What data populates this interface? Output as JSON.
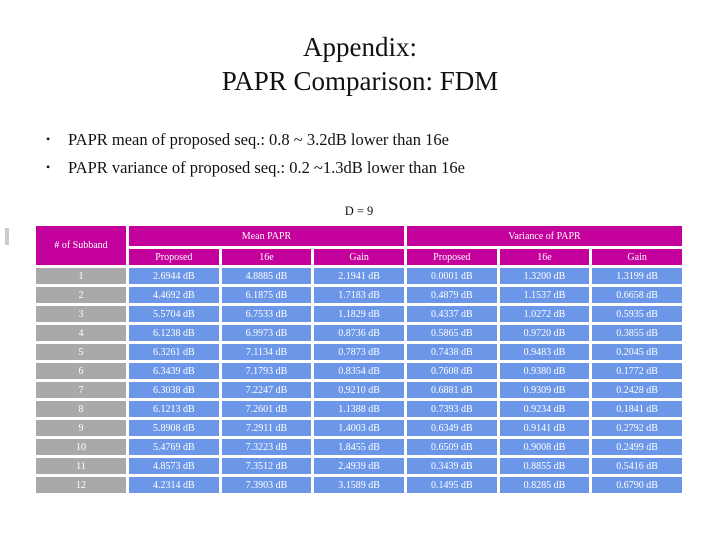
{
  "slide": {
    "title_line1": "Appendix:",
    "title_line2": "PAPR Comparison: FDM",
    "bullet_marker": "•",
    "bullets": [
      "PAPR mean of proposed seq.: 0.8 ~ 3.2dB lower than 16e",
      "PAPR variance of proposed seq.: 0.2 ~1.3dB lower than 16e"
    ]
  },
  "table": {
    "caption": "D = 9",
    "corner_header": "# of Subband",
    "group_headers": [
      "Mean PAPR",
      "Variance of PAPR"
    ],
    "sub_headers": [
      "Proposed",
      "16e",
      "Gain",
      "Proposed",
      "16e",
      "Gain"
    ],
    "rows": [
      {
        "subband": "1",
        "values": [
          "2.6944 dB",
          "4.8885 dB",
          "2.1941 dB",
          "0.0001 dB",
          "1.3200 dB",
          "1.3199 dB"
        ]
      },
      {
        "subband": "2",
        "values": [
          "4.4692 dB",
          "6.1875 dB",
          "1.7183 dB",
          "0.4879 dB",
          "1.1537 dB",
          "0.6658 dB"
        ]
      },
      {
        "subband": "3",
        "values": [
          "5.5704 dB",
          "6.7533 dB",
          "1.1829 dB",
          "0.4337 dB",
          "1.0272 dB",
          "0.5935 dB"
        ]
      },
      {
        "subband": "4",
        "values": [
          "6.1238 dB",
          "6.9973 dB",
          "0.8736 dB",
          "0.5865 dB",
          "0.9720 dB",
          "0.3855 dB"
        ]
      },
      {
        "subband": "5",
        "values": [
          "6.3261 dB",
          "7.1134 dB",
          "0.7873 dB",
          "0.7438 dB",
          "0.9483 dB",
          "0.2045 dB"
        ]
      },
      {
        "subband": "6",
        "values": [
          "6.3439 dB",
          "7.1793 dB",
          "0.8354 dB",
          "0.7608 dB",
          "0.9380 dB",
          "0.1772 dB"
        ]
      },
      {
        "subband": "7",
        "values": [
          "6.3038 dB",
          "7.2247 dB",
          "0.9210 dB",
          "0.6881 dB",
          "0.9309 dB",
          "0.2428 dB"
        ]
      },
      {
        "subband": "8",
        "values": [
          "6.1213 dB",
          "7.2601 dB",
          "1.1388 dB",
          "0.7393 dB",
          "0.9234 dB",
          "0.1841 dB"
        ]
      },
      {
        "subband": "9",
        "values": [
          "5.8908 dB",
          "7.2911 dB",
          "1.4003 dB",
          "0.6349 dB",
          "0.9141 dB",
          "0.2792 dB"
        ]
      },
      {
        "subband": "10",
        "values": [
          "5.4769 dB",
          "7.3223 dB",
          "1.8455 dB",
          "0.6509 dB",
          "0.9008 dB",
          "0.2499 dB"
        ]
      },
      {
        "subband": "11",
        "values": [
          "4.8573 dB",
          "7.3512 dB",
          "2.4939 dB",
          "0.3439 dB",
          "0.8855 dB",
          "0.5416 dB"
        ]
      },
      {
        "subband": "12",
        "values": [
          "4.2314 dB",
          "7.3903 dB",
          "3.1589 dB",
          "0.1495 dB",
          "0.8285 dB",
          "0.6790 dB"
        ]
      }
    ]
  },
  "colors": {
    "header_bg": "#c4009c",
    "rowhead_bg": "#a9a9a9",
    "cell_bg": "#6c96e8",
    "cell_text": "#ffffff"
  }
}
